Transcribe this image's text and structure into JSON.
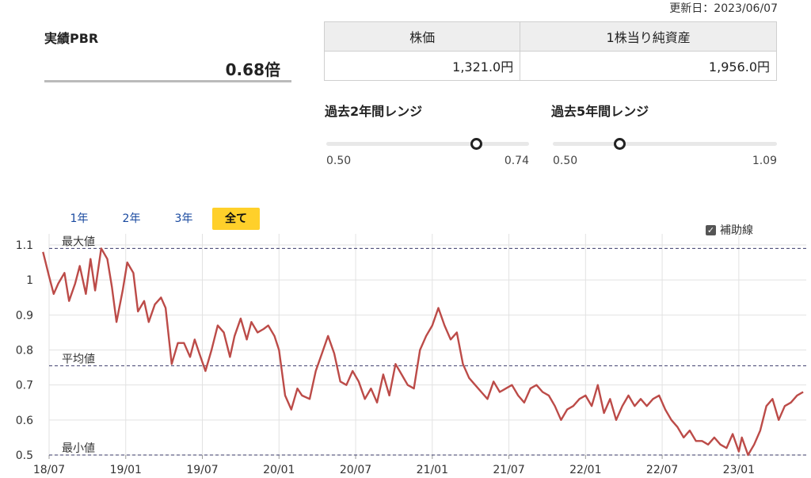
{
  "header": {
    "updated": "更新日：2023/06/07"
  },
  "pbr": {
    "title": "実績PBR",
    "value": "0.68倍"
  },
  "price_table": {
    "headers": [
      "株価",
      "1株当り純資産"
    ],
    "values": [
      "1,321.0円",
      "1,956.0円"
    ]
  },
  "ranges": [
    {
      "title": "過去2年間レンジ",
      "min": "0.50",
      "max": "0.74",
      "position": 0.74
    },
    {
      "title": "過去5年間レンジ",
      "min": "0.50",
      "max": "1.09",
      "position": 0.3
    }
  ],
  "period_tabs": [
    {
      "label": "1年",
      "active": false
    },
    {
      "label": "2年",
      "active": false
    },
    {
      "label": "3年",
      "active": false
    },
    {
      "label": "全て",
      "active": true
    }
  ],
  "auxiliary_lines": {
    "label": "補助線",
    "checked": true
  },
  "chart_data": {
    "type": "line",
    "ylim": [
      0.5,
      1.1
    ],
    "yticks": [
      "0.5",
      "0.6",
      "0.7",
      "0.8",
      "0.9",
      "1",
      "1.1"
    ],
    "xticks": [
      "18/07",
      "19/01",
      "19/07",
      "20/01",
      "20/07",
      "21/01",
      "21/07",
      "22/01",
      "22/07",
      "23/01"
    ],
    "xlim": [
      2018.5,
      2023.44
    ],
    "reference_lines": [
      {
        "label": "最大値",
        "value": 1.09
      },
      {
        "label": "平均値",
        "value": 0.755
      },
      {
        "label": "最小値",
        "value": 0.5
      }
    ],
    "series": [
      {
        "color": "#bc4b48",
        "x": [
          2018.46,
          2018.5,
          2018.53,
          2018.56,
          2018.6,
          2018.63,
          2018.67,
          2018.7,
          2018.74,
          2018.77,
          2018.8,
          2018.84,
          2018.88,
          2018.91,
          2018.94,
          2018.98,
          2019.01,
          2019.05,
          2019.08,
          2019.12,
          2019.15,
          2019.19,
          2019.23,
          2019.26,
          2019.3,
          2019.34,
          2019.38,
          2019.42,
          2019.45,
          2019.48,
          2019.52,
          2019.56,
          2019.6,
          2019.64,
          2019.68,
          2019.71,
          2019.75,
          2019.79,
          2019.82,
          2019.86,
          2019.9,
          2019.93,
          2019.97,
          2020.0,
          2020.04,
          2020.08,
          2020.12,
          2020.15,
          2020.2,
          2020.24,
          2020.28,
          2020.32,
          2020.36,
          2020.4,
          2020.44,
          2020.48,
          2020.52,
          2020.56,
          2020.6,
          2020.64,
          2020.68,
          2020.72,
          2020.76,
          2020.8,
          2020.84,
          2020.88,
          2020.92,
          2020.96,
          2021.0,
          2021.04,
          2021.08,
          2021.12,
          2021.16,
          2021.2,
          2021.24,
          2021.28,
          2021.32,
          2021.36,
          2021.4,
          2021.44,
          2021.48,
          2021.52,
          2021.56,
          2021.6,
          2021.64,
          2021.68,
          2021.72,
          2021.76,
          2021.8,
          2021.84,
          2021.88,
          2021.92,
          2021.96,
          2022.0,
          2022.04,
          2022.08,
          2022.12,
          2022.16,
          2022.2,
          2022.24,
          2022.28,
          2022.32,
          2022.36,
          2022.4,
          2022.44,
          2022.48,
          2022.52,
          2022.56,
          2022.6,
          2022.64,
          2022.68,
          2022.72,
          2022.76,
          2022.8,
          2022.84,
          2022.88,
          2022.92,
          2022.96,
          2023.0,
          2023.02,
          2023.06,
          2023.1,
          2023.14,
          2023.18,
          2023.22,
          2023.26,
          2023.3,
          2023.34,
          2023.38,
          2023.42
        ],
        "y": [
          1.08,
          1.01,
          0.96,
          0.99,
          1.02,
          0.94,
          0.99,
          1.04,
          0.96,
          1.06,
          0.97,
          1.09,
          1.06,
          0.98,
          0.88,
          0.97,
          1.05,
          1.02,
          0.91,
          0.94,
          0.88,
          0.93,
          0.95,
          0.92,
          0.76,
          0.82,
          0.82,
          0.78,
          0.83,
          0.79,
          0.74,
          0.8,
          0.87,
          0.85,
          0.78,
          0.84,
          0.89,
          0.83,
          0.88,
          0.85,
          0.86,
          0.87,
          0.84,
          0.8,
          0.67,
          0.63,
          0.69,
          0.67,
          0.66,
          0.74,
          0.79,
          0.84,
          0.79,
          0.71,
          0.7,
          0.74,
          0.71,
          0.66,
          0.69,
          0.65,
          0.73,
          0.67,
          0.76,
          0.73,
          0.7,
          0.69,
          0.8,
          0.84,
          0.87,
          0.92,
          0.87,
          0.83,
          0.85,
          0.76,
          0.72,
          0.7,
          0.68,
          0.66,
          0.71,
          0.68,
          0.69,
          0.7,
          0.67,
          0.65,
          0.69,
          0.7,
          0.68,
          0.67,
          0.64,
          0.6,
          0.63,
          0.64,
          0.66,
          0.67,
          0.64,
          0.7,
          0.62,
          0.66,
          0.6,
          0.64,
          0.67,
          0.64,
          0.66,
          0.64,
          0.66,
          0.67,
          0.63,
          0.6,
          0.58,
          0.55,
          0.57,
          0.54,
          0.54,
          0.53,
          0.55,
          0.53,
          0.52,
          0.56,
          0.51,
          0.55,
          0.5,
          0.53,
          0.57,
          0.64,
          0.66,
          0.6,
          0.64,
          0.65,
          0.67,
          0.68
        ]
      }
    ]
  }
}
